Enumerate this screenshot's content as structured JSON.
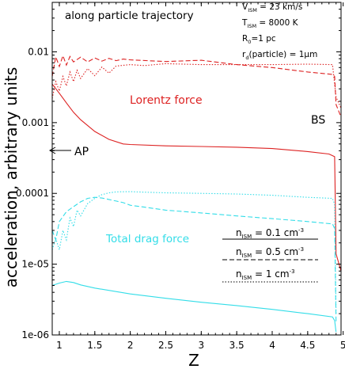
{
  "chart_data": {
    "type": "line",
    "xlabel": "Z",
    "ylabel": "acceleration, arbitrary units",
    "xlim": [
      0.9,
      4.97
    ],
    "ylim": [
      1e-06,
      0.05
    ],
    "yscale": "log",
    "grid": false,
    "x_ticks": [
      "1",
      "1.5",
      "2",
      "2.5",
      "3",
      "3.5",
      "4",
      "4.5",
      "5"
    ],
    "y_ticks": [
      "1e-06",
      "1e-05",
      "0.0001",
      "0.001",
      "0.01"
    ],
    "colors": {
      "lorentz": "#dd2222",
      "drag": "#33dde8"
    },
    "annotations": {
      "top_left": "along particle trajectory",
      "lorentz_label": "Lorentz force",
      "drag_label": "Total drag force",
      "ap_label": "AP",
      "bs_label": "BS",
      "params": {
        "v_main": "V",
        "v_sub": "ISM",
        "v_val": " = 23 km/s",
        "t_main": "T",
        "t_sub": "ISM",
        "t_val": " = 8000 K",
        "r_main": "R",
        "r_sub": "0",
        "r_val": "=1 pc",
        "rd_main": "r",
        "rd_sub": "d",
        "rd_val": "(particle) = 1μm"
      }
    },
    "legend": [
      {
        "main": "n",
        "sub": "ISM",
        "val": " = 0.1 cm",
        "sup": "-3",
        "style": "solid"
      },
      {
        "main": "n",
        "sub": "ISM",
        "val": " = 0.5 cm",
        "sup": "-3",
        "style": "dashed"
      },
      {
        "main": "n",
        "sub": "ISM",
        "val": " = 1 cm",
        "sup": "-3",
        "style": "dotted"
      }
    ],
    "series": [
      {
        "group": "lorentz",
        "style": "solid",
        "x": [
          0.9,
          1.0,
          1.1,
          1.2,
          1.3,
          1.5,
          1.7,
          1.9,
          2.0,
          2.5,
          3.0,
          3.5,
          4.0,
          4.5,
          4.8,
          4.88,
          4.9,
          4.97
        ],
        "y": [
          0.0035,
          0.0026,
          0.0019,
          0.0014,
          0.0011,
          0.00075,
          0.00058,
          0.0005,
          0.00049,
          0.00047,
          0.00046,
          0.00045,
          0.00043,
          0.00039,
          0.00036,
          0.00033,
          1.4e-05,
          8e-06
        ]
      },
      {
        "group": "lorentz",
        "style": "dashed",
        "x": [
          0.9,
          0.95,
          1.0,
          1.05,
          1.1,
          1.15,
          1.2,
          1.3,
          1.4,
          1.5,
          1.6,
          1.7,
          1.8,
          1.9,
          2.0,
          2.5,
          3.0,
          3.5,
          4.0,
          4.5,
          4.85,
          4.88,
          4.9,
          4.97
        ],
        "y": [
          0.0045,
          0.0085,
          0.0062,
          0.0088,
          0.0065,
          0.0086,
          0.0072,
          0.0084,
          0.0072,
          0.0082,
          0.0074,
          0.0081,
          0.0075,
          0.0079,
          0.0077,
          0.0073,
          0.0076,
          0.0066,
          0.006,
          0.0052,
          0.0048,
          0.0045,
          0.0018,
          0.0012
        ]
      },
      {
        "group": "lorentz",
        "style": "dotted",
        "x": [
          0.9,
          0.95,
          1.0,
          1.05,
          1.1,
          1.15,
          1.2,
          1.25,
          1.3,
          1.4,
          1.5,
          1.6,
          1.7,
          1.8,
          2.0,
          2.2,
          2.5,
          3.0,
          3.5,
          4.0,
          4.5,
          4.85,
          4.9,
          4.97
        ],
        "y": [
          0.0022,
          0.0038,
          0.0028,
          0.0045,
          0.0033,
          0.0052,
          0.0038,
          0.0055,
          0.0042,
          0.0058,
          0.0046,
          0.0061,
          0.005,
          0.0063,
          0.0066,
          0.0064,
          0.0068,
          0.0066,
          0.0066,
          0.0066,
          0.0067,
          0.0066,
          0.0023,
          0.0016
        ]
      },
      {
        "group": "drag",
        "style": "solid",
        "x": [
          0.9,
          1.0,
          1.1,
          1.2,
          1.3,
          1.5,
          2.0,
          2.5,
          3.0,
          3.5,
          4.0,
          4.5,
          4.85,
          4.88,
          4.9
        ],
        "y": [
          5e-06,
          5.4e-06,
          5.7e-06,
          5.5e-06,
          5.1e-06,
          4.6e-06,
          3.8e-06,
          3.3e-06,
          2.9e-06,
          2.6e-06,
          2.3e-06,
          2e-06,
          1.8e-06,
          1.6e-06,
          1.1e-06
        ]
      },
      {
        "group": "drag",
        "style": "dashed",
        "x": [
          0.9,
          0.95,
          1.0,
          1.1,
          1.2,
          1.3,
          1.4,
          1.5,
          1.6,
          1.7,
          1.8,
          1.9,
          2.0,
          2.2,
          2.5,
          3.0,
          3.5,
          4.0,
          4.5,
          4.85,
          4.88,
          4.9
        ],
        "y": [
          3e-05,
          2.2e-05,
          4e-05,
          5.5e-05,
          6.5e-05,
          7.6e-05,
          8.5e-05,
          8.8e-05,
          8.6e-05,
          8.2e-05,
          7.8e-05,
          7.4e-05,
          6.8e-05,
          6.4e-05,
          5.8e-05,
          5.3e-05,
          4.8e-05,
          4.4e-05,
          4e-05,
          3.7e-05,
          3.2e-05,
          1.5e-06
        ]
      },
      {
        "group": "drag",
        "style": "dotted",
        "x": [
          0.9,
          0.95,
          1.0,
          1.05,
          1.1,
          1.15,
          1.2,
          1.25,
          1.3,
          1.4,
          1.5,
          1.6,
          1.7,
          1.8,
          2.0,
          2.2,
          2.5,
          3.0,
          3.5,
          4.0,
          4.5,
          4.85,
          4.88,
          4.9
        ],
        "y": [
          1.6e-05,
          2.3e-05,
          1.6e-05,
          3e-05,
          2.2e-05,
          4.5e-05,
          3.4e-05,
          5.8e-05,
          4.8e-05,
          7.2e-05,
          8.5e-05,
          9.6e-05,
          0.000102,
          0.000105,
          0.000106,
          0.000104,
          0.000102,
          0.0001,
          9.8e-05,
          9.4e-05,
          8.8e-05,
          8.5e-05,
          7e-05,
          2e-06
        ]
      }
    ]
  }
}
